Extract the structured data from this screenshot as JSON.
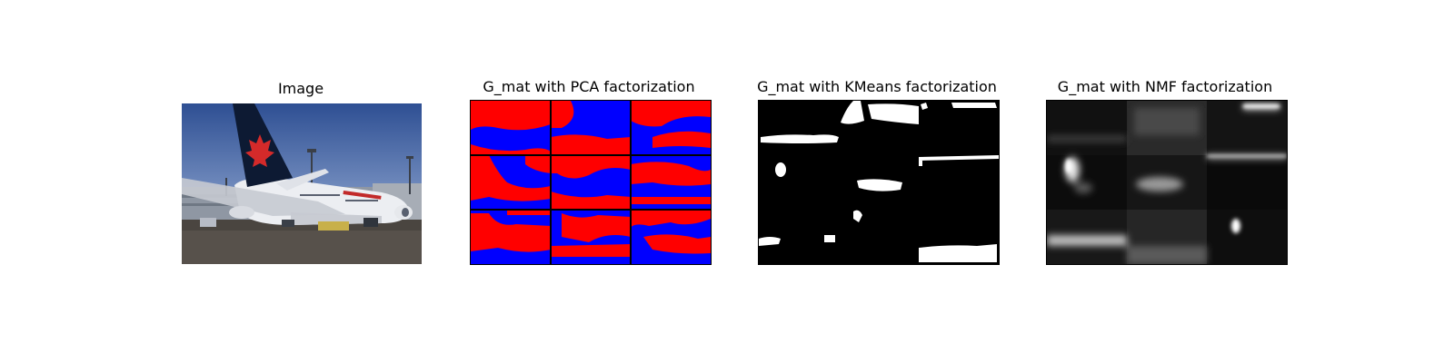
{
  "figure": {
    "panels": [
      {
        "id": "image",
        "title": "Image"
      },
      {
        "id": "pca",
        "title": "G_mat with PCA factorization"
      },
      {
        "id": "kmeans",
        "title": "G_mat with KMeans factorization"
      },
      {
        "id": "nmf",
        "title": "G_mat with NMF factorization"
      }
    ]
  },
  "colors": {
    "sky": "#3d5fa6",
    "tarmac": "#4a4540",
    "tail": "#0d1a33",
    "leaf": "#d42a2a",
    "fuselage": "#f2f2f4",
    "terminal": "#9aa0aa",
    "pca_red": "#ff0000",
    "pca_blue": "#0000ff",
    "mask_white": "#ffffff",
    "mask_black": "#000000"
  },
  "grid": {
    "rows": 3,
    "cols": 3
  }
}
